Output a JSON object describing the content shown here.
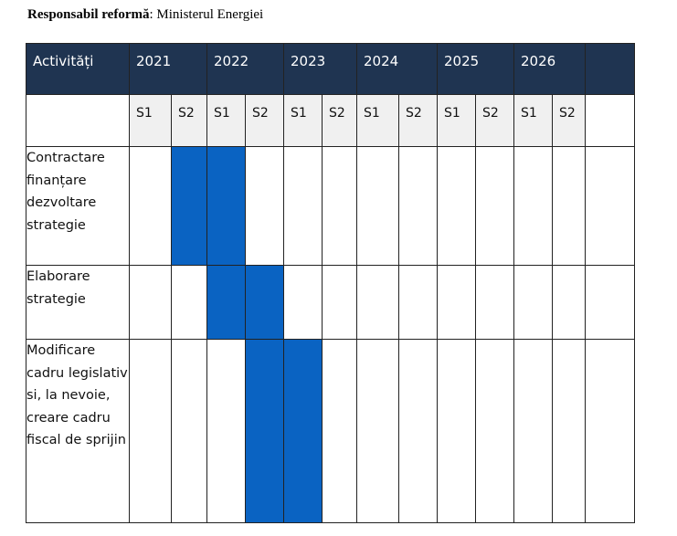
{
  "title": {
    "label": "Responsabil reformă",
    "value": ": Ministerul Energiei"
  },
  "table": {
    "header_label": "Activități",
    "years": [
      "2021",
      "2022",
      "2023",
      "2024",
      "2025",
      "2026"
    ],
    "semesters": [
      "S1",
      "S2",
      "S1",
      "S2",
      "S1",
      "S2",
      "S1",
      "S2",
      "S1",
      "S2",
      "S1",
      "S2"
    ],
    "bar_color": "#0a63c2",
    "header_color": "#1f3451",
    "activities": [
      {
        "name": "Contractare finanțare dezvoltare strategie",
        "active_periods": [
          "2021 S2",
          "2022 S1"
        ]
      },
      {
        "name": "Elaborare strategie",
        "active_periods": [
          "2022 S1",
          "2022 S2"
        ]
      },
      {
        "name": "Modificare cadru legislativ si, la nevoie, creare cadru fiscal de sprijin",
        "active_periods": [
          "2022 S2",
          "2023 S1"
        ]
      }
    ]
  }
}
